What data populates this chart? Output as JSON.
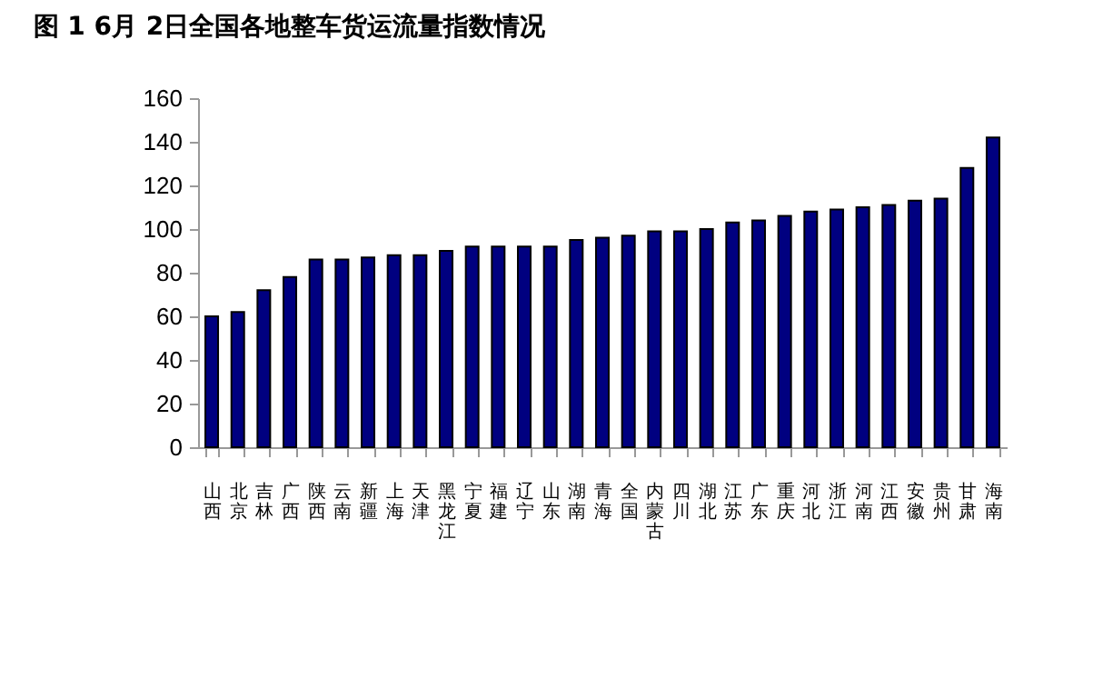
{
  "chart_data": {
    "type": "bar",
    "title": "图 1 6月 2日全国各地整车货运流量指数情况",
    "categories": [
      "山西",
      "北京",
      "吉林",
      "广西",
      "陕西",
      "云南",
      "新疆",
      "上海",
      "天津",
      "黑龙江",
      "宁夏",
      "福建",
      "辽宁",
      "山东",
      "湖南",
      "青海",
      "全国",
      "内蒙古",
      "四川",
      "湖北",
      "江苏",
      "广东",
      "重庆",
      "河北",
      "浙江",
      "河南",
      "江西",
      "安徽",
      "贵州",
      "甘肃",
      "海南"
    ],
    "values": [
      60,
      62,
      72,
      78,
      86,
      86,
      87,
      88,
      88,
      90,
      92,
      92,
      92,
      92,
      95,
      96,
      97,
      99,
      99,
      100,
      103,
      104,
      106,
      108,
      109,
      110,
      111,
      113,
      114,
      128,
      142
    ],
    "color": "#000080",
    "ylim": [
      0,
      160
    ],
    "yticks": [
      0,
      20,
      40,
      60,
      80,
      100,
      120,
      140,
      160
    ],
    "grid": false
  }
}
